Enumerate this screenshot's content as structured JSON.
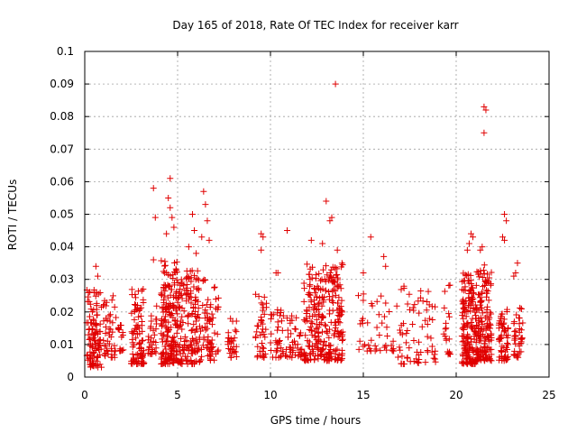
{
  "chart_data": {
    "type": "scatter",
    "title": "Day 165 of 2018, Rate Of TEC Index for receiver karr",
    "xlabel": "GPS time / hours",
    "ylabel": "ROTI / TECUs",
    "xlim": [
      0,
      25
    ],
    "ylim": [
      0,
      0.1
    ],
    "x_ticks": [
      "0",
      "5",
      "10",
      "15",
      "20",
      "25"
    ],
    "y_ticks": [
      "0",
      "0.01",
      "0.02",
      "0.03",
      "0.04",
      "0.05",
      "0.06",
      "0.07",
      "0.08",
      "0.09",
      "0.1"
    ],
    "grid": true,
    "marker": "+",
    "series_color": "#e00000",
    "clusters": [
      {
        "x_start": 0.1,
        "x_end": 0.9,
        "y_min": 0.003,
        "y_max": 0.027,
        "count": 110,
        "outliers": [
          [
            0.6,
            0.034
          ],
          [
            0.7,
            0.031
          ]
        ]
      },
      {
        "x_start": 1.0,
        "x_end": 1.7,
        "y_min": 0.006,
        "y_max": 0.026,
        "count": 45,
        "outliers": []
      },
      {
        "x_start": 1.8,
        "x_end": 2.1,
        "y_min": 0.008,
        "y_max": 0.016,
        "count": 15,
        "outliers": []
      },
      {
        "x_start": 2.5,
        "x_end": 3.2,
        "y_min": 0.004,
        "y_max": 0.028,
        "count": 90,
        "outliers": []
      },
      {
        "x_start": 3.4,
        "x_end": 3.9,
        "y_min": 0.007,
        "y_max": 0.022,
        "count": 30,
        "outliers": [
          [
            3.7,
            0.058
          ],
          [
            3.8,
            0.049
          ],
          [
            3.7,
            0.036
          ]
        ]
      },
      {
        "x_start": 4.1,
        "x_end": 5.0,
        "y_min": 0.004,
        "y_max": 0.036,
        "count": 180,
        "outliers": [
          [
            4.6,
            0.061
          ],
          [
            4.5,
            0.055
          ],
          [
            4.6,
            0.052
          ],
          [
            4.7,
            0.049
          ],
          [
            4.4,
            0.044
          ],
          [
            4.8,
            0.046
          ]
        ]
      },
      {
        "x_start": 5.0,
        "x_end": 6.2,
        "y_min": 0.004,
        "y_max": 0.033,
        "count": 160,
        "outliers": [
          [
            5.8,
            0.05
          ],
          [
            5.9,
            0.045
          ],
          [
            5.6,
            0.04
          ],
          [
            6.0,
            0.038
          ]
        ]
      },
      {
        "x_start": 6.2,
        "x_end": 7.2,
        "y_min": 0.005,
        "y_max": 0.03,
        "count": 70,
        "outliers": [
          [
            6.4,
            0.057
          ],
          [
            6.5,
            0.053
          ],
          [
            6.6,
            0.048
          ],
          [
            6.3,
            0.043
          ],
          [
            6.7,
            0.042
          ]
        ]
      },
      {
        "x_start": 7.7,
        "x_end": 8.2,
        "y_min": 0.006,
        "y_max": 0.018,
        "count": 30,
        "outliers": []
      },
      {
        "x_start": 9.2,
        "x_end": 9.8,
        "y_min": 0.006,
        "y_max": 0.028,
        "count": 40,
        "outliers": [
          [
            9.5,
            0.044
          ],
          [
            9.6,
            0.043
          ],
          [
            9.5,
            0.039
          ]
        ]
      },
      {
        "x_start": 10.0,
        "x_end": 10.7,
        "y_min": 0.006,
        "y_max": 0.022,
        "count": 35,
        "outliers": [
          [
            10.3,
            0.032
          ],
          [
            10.4,
            0.032
          ],
          [
            10.9,
            0.045
          ]
        ]
      },
      {
        "x_start": 10.8,
        "x_end": 11.7,
        "y_min": 0.006,
        "y_max": 0.02,
        "count": 40,
        "outliers": []
      },
      {
        "x_start": 11.8,
        "x_end": 13.9,
        "y_min": 0.005,
        "y_max": 0.035,
        "count": 280,
        "outliers": [
          [
            13.5,
            0.09
          ],
          [
            13.0,
            0.054
          ],
          [
            13.2,
            0.048
          ],
          [
            13.3,
            0.049
          ],
          [
            12.2,
            0.042
          ],
          [
            12.8,
            0.041
          ],
          [
            13.6,
            0.039
          ]
        ]
      },
      {
        "x_start": 14.7,
        "x_end": 16.7,
        "y_min": 0.008,
        "y_max": 0.026,
        "count": 45,
        "outliers": [
          [
            15.4,
            0.043
          ],
          [
            16.1,
            0.037
          ],
          [
            16.2,
            0.034
          ],
          [
            15.0,
            0.032
          ]
        ]
      },
      {
        "x_start": 16.8,
        "x_end": 18.9,
        "y_min": 0.004,
        "y_max": 0.028,
        "count": 70,
        "outliers": []
      },
      {
        "x_start": 19.3,
        "x_end": 19.7,
        "y_min": 0.007,
        "y_max": 0.03,
        "count": 20,
        "outliers": []
      },
      {
        "x_start": 20.3,
        "x_end": 21.1,
        "y_min": 0.004,
        "y_max": 0.032,
        "count": 170,
        "outliers": [
          [
            20.8,
            0.044
          ],
          [
            20.9,
            0.043
          ],
          [
            20.7,
            0.041
          ],
          [
            20.6,
            0.039
          ]
        ]
      },
      {
        "x_start": 21.1,
        "x_end": 21.9,
        "y_min": 0.005,
        "y_max": 0.035,
        "count": 150,
        "outliers": [
          [
            21.5,
            0.083
          ],
          [
            21.6,
            0.082
          ],
          [
            21.5,
            0.075
          ],
          [
            21.4,
            0.04
          ],
          [
            21.3,
            0.039
          ]
        ]
      },
      {
        "x_start": 22.3,
        "x_end": 22.8,
        "y_min": 0.005,
        "y_max": 0.022,
        "count": 60,
        "outliers": [
          [
            22.6,
            0.05
          ],
          [
            22.7,
            0.048
          ],
          [
            22.5,
            0.043
          ],
          [
            22.6,
            0.042
          ]
        ]
      },
      {
        "x_start": 23.1,
        "x_end": 23.6,
        "y_min": 0.006,
        "y_max": 0.022,
        "count": 40,
        "outliers": [
          [
            23.3,
            0.035
          ],
          [
            23.2,
            0.032
          ],
          [
            23.1,
            0.031
          ]
        ]
      }
    ]
  }
}
